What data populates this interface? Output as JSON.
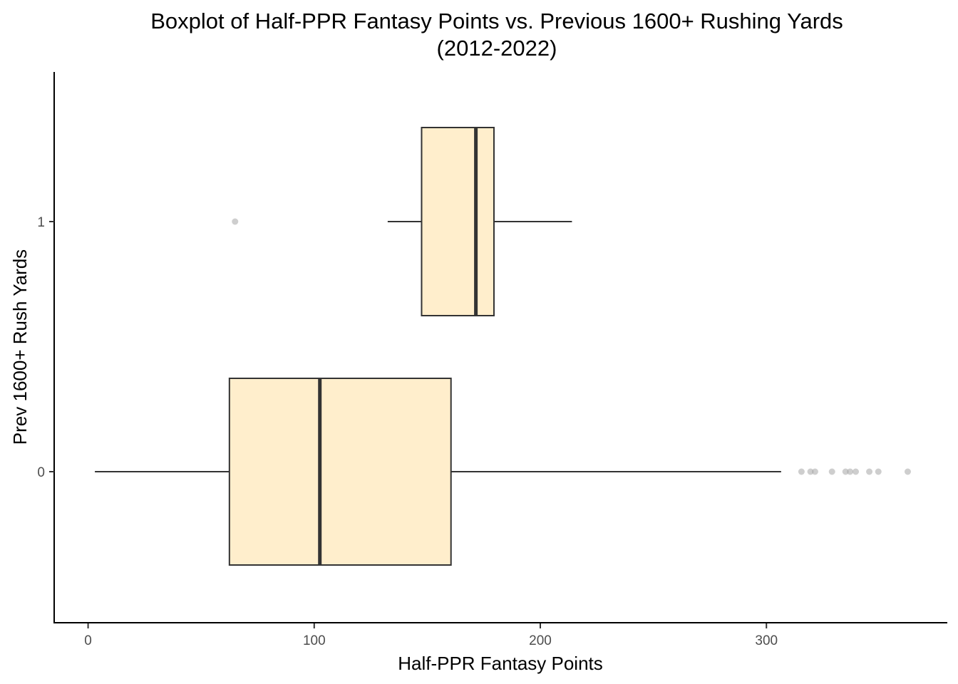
{
  "chart_data": {
    "type": "boxplot",
    "orientation": "horizontal",
    "title_lines": [
      "Boxplot of Half-PPR Fantasy Points vs. Previous 1600+ Rushing Yards",
      "(2012-2022)"
    ],
    "xlabel": "Half-PPR Fantasy Points",
    "ylabel": "Prev 1600+ Rush Yards",
    "xlim": [
      -15,
      380
    ],
    "x_ticks": [
      0,
      100,
      200,
      300
    ],
    "x_tick_labels": [
      "0",
      "100",
      "200",
      "300"
    ],
    "categories": [
      "0",
      "1"
    ],
    "grid": false,
    "legend": "none",
    "box_fill": "#FFEECC",
    "box_stroke": "#333333",
    "outlier_color": "#A6A6A6",
    "boxes": [
      {
        "category": "0",
        "whisker_low": 3,
        "q1": 62.5,
        "median": 102.5,
        "q3": 160.5,
        "whisker_high": 306.5,
        "outliers": [
          315.5,
          319.5,
          321.5,
          329,
          335,
          337,
          339.5,
          345.5,
          349.5,
          362.5
        ]
      },
      {
        "category": "1",
        "whisker_low": 132.5,
        "q1": 147.5,
        "median": 171.5,
        "q3": 179.5,
        "whisker_high": 214,
        "outliers": [
          65
        ]
      }
    ]
  }
}
